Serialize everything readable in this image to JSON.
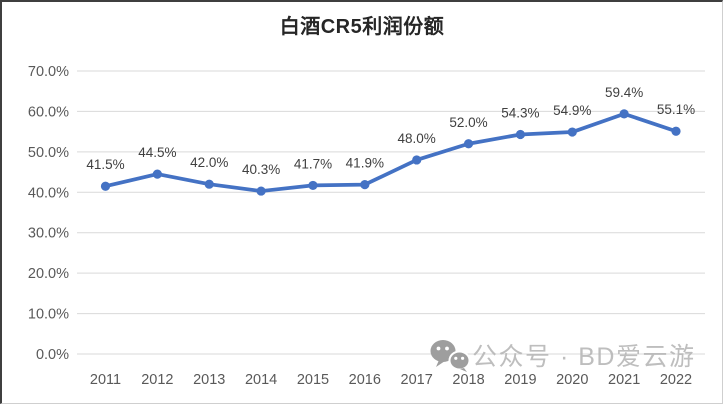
{
  "chart_data": {
    "type": "line",
    "title": "白酒CR5利润份额",
    "categories": [
      "2011",
      "2012",
      "2013",
      "2014",
      "2015",
      "2016",
      "2017",
      "2018",
      "2019",
      "2020",
      "2021",
      "2022"
    ],
    "series": [
      {
        "name": "白酒CR5利润份额",
        "values": [
          41.5,
          44.5,
          42.0,
          40.3,
          41.7,
          41.9,
          48.0,
          52.0,
          54.3,
          54.9,
          59.4,
          55.1
        ]
      }
    ],
    "data_labels": [
      "41.5%",
      "44.5%",
      "42.0%",
      "40.3%",
      "41.7%",
      "41.9%",
      "48.0%",
      "52.0%",
      "54.3%",
      "54.9%",
      "59.4%",
      "55.1%"
    ],
    "y_ticks": [
      "0.0%",
      "10.0%",
      "20.0%",
      "30.0%",
      "40.0%",
      "50.0%",
      "60.0%",
      "70.0%"
    ],
    "ylim": [
      0,
      70
    ],
    "xlabel": "",
    "ylabel": "",
    "grid": true,
    "legend_position": "none",
    "line_color": "#4472C4",
    "grid_color": "#D9D9D9",
    "data_label_color": "#404040",
    "axis_label_color": "#595959"
  },
  "watermark": {
    "icon": "wechat-icon",
    "text": "公众号 · BD爱云游",
    "text_color": "#b7b7b7",
    "icon_color": "#9e9e9e"
  }
}
